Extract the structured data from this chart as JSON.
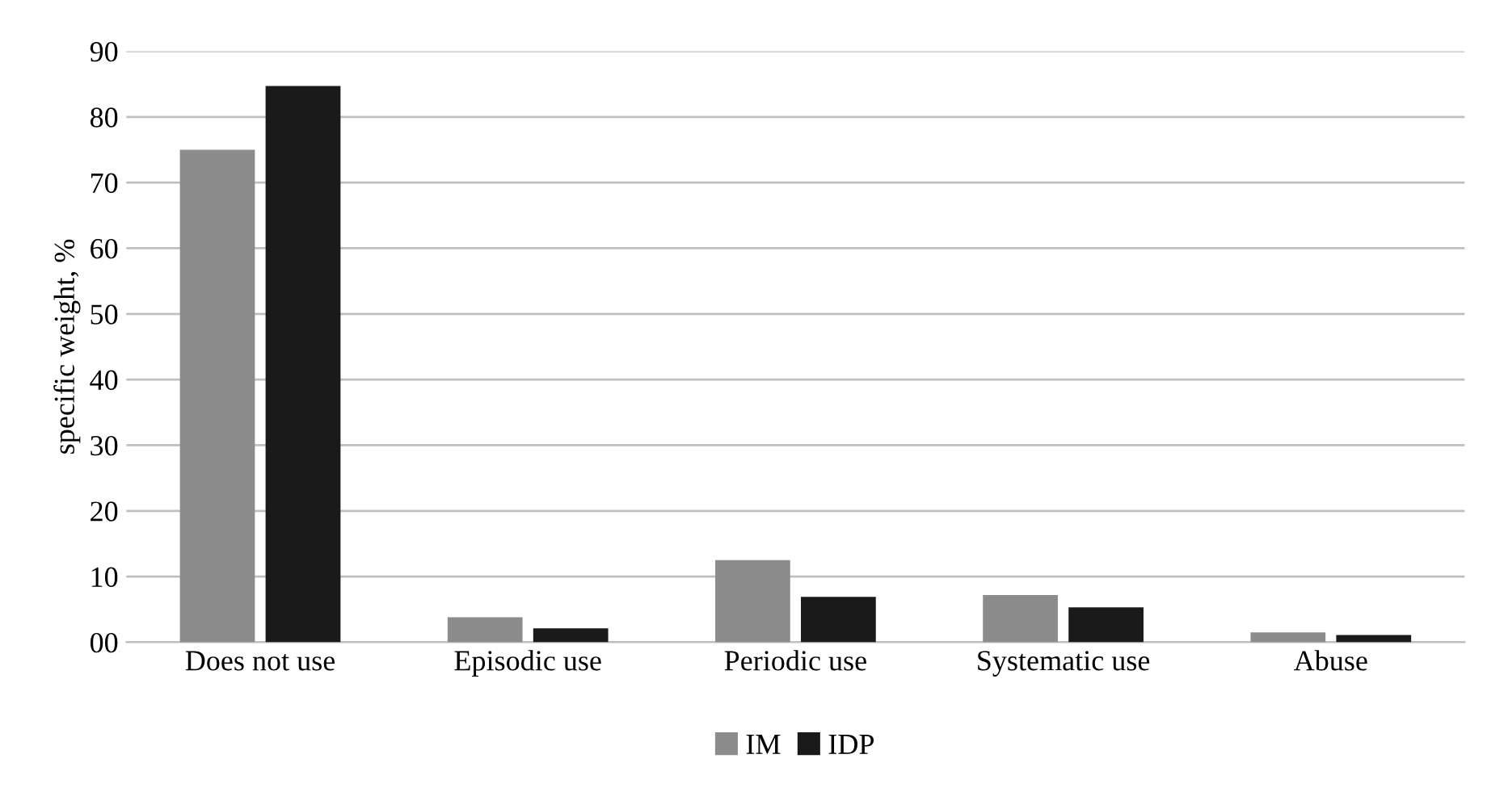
{
  "chart_data": {
    "type": "bar",
    "ylabel": "specific weight, %",
    "categories": [
      "Does not use",
      "Episodic use",
      "Periodic use",
      "Systematic use",
      "Abuse"
    ],
    "series": [
      {
        "name": "IM",
        "color": "#8c8c8c",
        "values": [
          75,
          3.8,
          12.5,
          7.2,
          1.5
        ]
      },
      {
        "name": "IDP",
        "color": "#1a1a1a",
        "values": [
          84.7,
          2.1,
          6.9,
          5.3,
          1.1
        ]
      }
    ],
    "ylim": [
      0,
      90
    ],
    "yticks": [
      {
        "value": 0,
        "label": "00"
      },
      10,
      20,
      30,
      40,
      50,
      60,
      70,
      80,
      90
    ],
    "grid": "y",
    "legend": "bottom"
  }
}
